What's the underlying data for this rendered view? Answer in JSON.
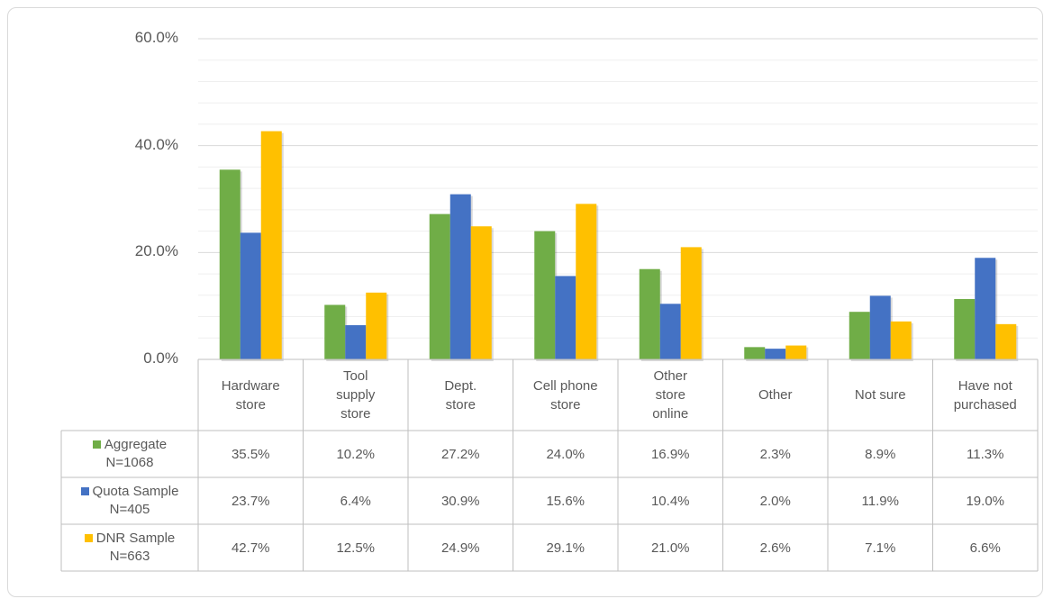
{
  "chart_data": {
    "type": "bar",
    "categories": [
      "Hardware\nstore",
      "Tool\nsupply\nstore",
      "Dept.\nstore",
      "Cell phone\nstore",
      "Other\nstore\nonline",
      "Other",
      "Not sure",
      "Have not\npurchased"
    ],
    "series": [
      {
        "name": "Aggregate\nN=1068",
        "color": "#70ad47",
        "values": [
          35.5,
          10.2,
          27.2,
          24.0,
          16.9,
          2.3,
          8.9,
          11.3
        ],
        "value_labels": [
          "35.5%",
          "10.2%",
          "27.2%",
          "24.0%",
          "16.9%",
          "2.3%",
          "8.9%",
          "11.3%"
        ]
      },
      {
        "name": "Quota Sample\nN=405",
        "color": "#4472c4",
        "values": [
          23.7,
          6.4,
          30.9,
          15.6,
          10.4,
          2.0,
          11.9,
          19.0
        ],
        "value_labels": [
          "23.7%",
          "6.4%",
          "30.9%",
          "15.6%",
          "10.4%",
          "2.0%",
          "11.9%",
          "19.0%"
        ]
      },
      {
        "name": "DNR Sample\nN=663",
        "color": "#ffc000",
        "values": [
          42.7,
          12.5,
          24.9,
          29.1,
          21.0,
          2.6,
          7.1,
          6.6
        ],
        "value_labels": [
          "42.7%",
          "12.5%",
          "24.9%",
          "29.1%",
          "21.0%",
          "2.6%",
          "7.1%",
          "6.6%"
        ]
      }
    ],
    "ylim": [
      0,
      60
    ],
    "yticks": [
      {
        "value": 0,
        "label": "0.0%"
      },
      {
        "value": 20,
        "label": "20.0%"
      },
      {
        "value": 40,
        "label": "40.0%"
      },
      {
        "value": 60,
        "label": "60.0%"
      }
    ],
    "minor_yticks": [
      4,
      8,
      12,
      16,
      24,
      28,
      32,
      36,
      44,
      48,
      52,
      56
    ],
    "grid": true
  }
}
